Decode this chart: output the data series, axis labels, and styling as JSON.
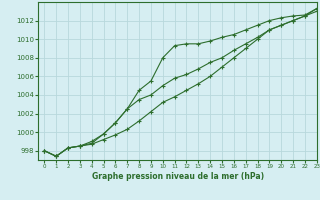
{
  "title": "Graphe pression niveau de la mer (hPa)",
  "xlabel": "Graphe pression niveau de la mer (hPa)",
  "bg_color": "#d6eef2",
  "grid_color": "#b8d8dc",
  "line_color": "#2d6e2d",
  "xlim": [
    -0.5,
    23
  ],
  "ylim": [
    997,
    1014
  ],
  "yticks": [
    998,
    1000,
    1002,
    1004,
    1006,
    1008,
    1010,
    1012
  ],
  "xticks": [
    0,
    1,
    2,
    3,
    4,
    5,
    6,
    7,
    8,
    9,
    10,
    11,
    12,
    13,
    14,
    15,
    16,
    17,
    18,
    19,
    20,
    21,
    22,
    23
  ],
  "hours": [
    0,
    1,
    2,
    3,
    4,
    5,
    6,
    7,
    8,
    9,
    10,
    11,
    12,
    13,
    14,
    15,
    16,
    17,
    18,
    19,
    20,
    21,
    22,
    23
  ],
  "line1": [
    998.0,
    997.4,
    998.3,
    998.5,
    999.0,
    999.8,
    1001.0,
    1002.5,
    1004.5,
    1005.5,
    1008.0,
    1009.3,
    1009.5,
    1009.5,
    1009.8,
    1010.2,
    1010.5,
    1011.0,
    1011.5,
    1012.0,
    1012.3,
    1012.5,
    1012.6,
    1013.3
  ],
  "line2": [
    998.0,
    997.4,
    998.3,
    998.5,
    998.8,
    999.8,
    1001.0,
    1002.5,
    1003.5,
    1004.0,
    1005.0,
    1005.8,
    1006.2,
    1006.8,
    1007.5,
    1008.0,
    1008.8,
    1009.5,
    1010.2,
    1011.0,
    1011.5,
    1012.0,
    1012.5,
    1013.3
  ],
  "line3": [
    998.0,
    997.4,
    998.3,
    998.5,
    998.7,
    999.2,
    999.7,
    1000.3,
    1001.2,
    1002.2,
    1003.2,
    1003.8,
    1004.5,
    1005.2,
    1006.0,
    1007.0,
    1008.0,
    1009.0,
    1010.0,
    1011.0,
    1011.5,
    1012.0,
    1012.5,
    1013.0
  ]
}
